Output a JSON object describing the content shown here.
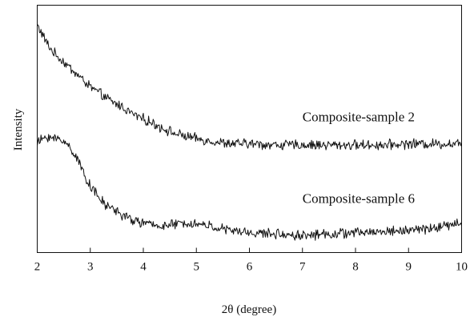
{
  "chart_data": {
    "type": "line",
    "title": "",
    "xlabel": "2θ (degree)",
    "ylabel": "Intensity",
    "xlim": [
      2,
      10
    ],
    "ylim": [
      0,
      100
    ],
    "x_ticks": [
      "2",
      "3",
      "4",
      "5",
      "6",
      "7",
      "8",
      "9",
      "10"
    ],
    "y_ticks": [],
    "grid": false,
    "legend": "none",
    "series": [
      {
        "name": "Composite-sample 2",
        "color": "#111111",
        "x": [
          2.0,
          2.1,
          2.2,
          2.3,
          2.4,
          2.5,
          2.6,
          2.7,
          2.8,
          2.9,
          3.0,
          3.2,
          3.4,
          3.6,
          3.8,
          4.0,
          4.2,
          4.4,
          4.6,
          4.8,
          5.0,
          5.3,
          5.6,
          6.0,
          6.5,
          7.0,
          7.5,
          8.0,
          8.5,
          9.0,
          9.5,
          10.0
        ],
        "y": [
          92,
          88,
          84,
          81,
          79,
          77,
          75,
          73,
          71,
          69,
          67,
          64,
          61,
          59,
          56,
          54,
          52,
          50,
          48,
          47,
          46,
          45,
          44,
          44,
          43.5,
          43.5,
          43.5,
          43.5,
          43.5,
          44,
          44,
          44
        ]
      },
      {
        "name": "Composite-sample 6",
        "color": "#111111",
        "x": [
          2.0,
          2.1,
          2.2,
          2.3,
          2.4,
          2.5,
          2.6,
          2.7,
          2.8,
          2.9,
          3.0,
          3.1,
          3.2,
          3.3,
          3.4,
          3.5,
          3.6,
          3.8,
          4.0,
          4.2,
          4.5,
          4.8,
          5.2,
          5.6,
          6.0,
          6.5,
          7.0,
          7.5,
          8.0,
          8.5,
          9.0,
          9.5,
          10.0
        ],
        "y": [
          44,
          46,
          47,
          46,
          46,
          45,
          43,
          40,
          36,
          31,
          27,
          24,
          21,
          19,
          18,
          17,
          15,
          13,
          12,
          11,
          11,
          12,
          11,
          9,
          8,
          7.5,
          7,
          7.5,
          8,
          8.5,
          9,
          10,
          12
        ]
      }
    ],
    "annotations": [
      {
        "text": "Composite-sample 2",
        "x": 7.0,
        "y": 53
      },
      {
        "text": "Composite-sample 6",
        "x": 7.0,
        "y": 20
      }
    ]
  }
}
